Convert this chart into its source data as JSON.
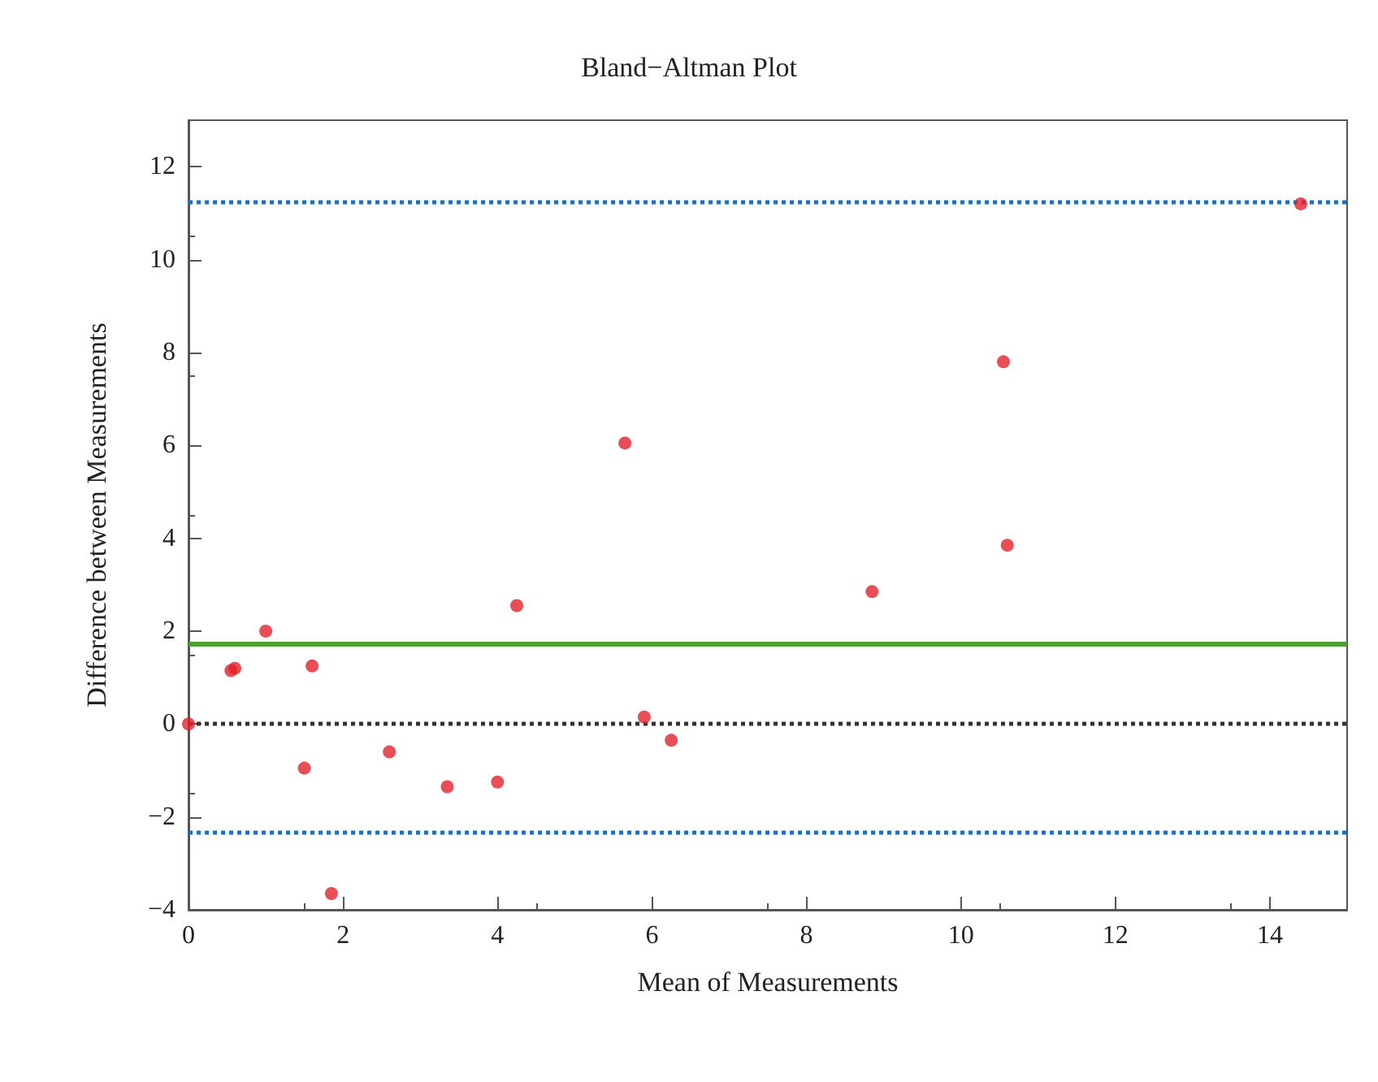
{
  "chart_data": {
    "type": "scatter",
    "title": "Bland−Altman Plot",
    "xlabel": "Mean of Measurements",
    "ylabel": "Difference between Measurements",
    "x": [
      0,
      0.55,
      0.6,
      1.0,
      1.6,
      1.5,
      1.85,
      2.6,
      3.35,
      4.0,
      4.25,
      5.65,
      5.9,
      6.25,
      8.85,
      10.55,
      10.6,
      14.4
    ],
    "series": [
      {
        "color": "#e3202a",
        "values": [
          0,
          1.15,
          1.2,
          2.0,
          1.25,
          -0.95,
          -3.65,
          -0.6,
          -1.35,
          -1.25,
          2.55,
          6.05,
          0.15,
          -0.35,
          2.85,
          7.8,
          3.85,
          11.2
        ]
      }
    ],
    "xlim": [
      0,
      15
    ],
    "xticks": [
      0,
      2,
      4,
      6,
      8,
      10,
      12,
      14
    ],
    "ylim": [
      -4,
      13
    ],
    "yticks": [
      -4,
      -2,
      0,
      2,
      4,
      6,
      8,
      10,
      12
    ],
    "ref_lines": [
      {
        "axis": "y",
        "value": 11.25,
        "color": "#1f6fbf",
        "line_style": "dotted"
      },
      {
        "axis": "y",
        "value": 1.72,
        "color": "#4aa02c",
        "line_style": "solid"
      },
      {
        "axis": "y",
        "value": 0,
        "color": "#333333",
        "line_style": "dotted"
      },
      {
        "axis": "y",
        "value": -2.32,
        "color": "#1f6fbf",
        "line_style": "dotted"
      }
    ],
    "marker": "circle",
    "grid": false
  }
}
